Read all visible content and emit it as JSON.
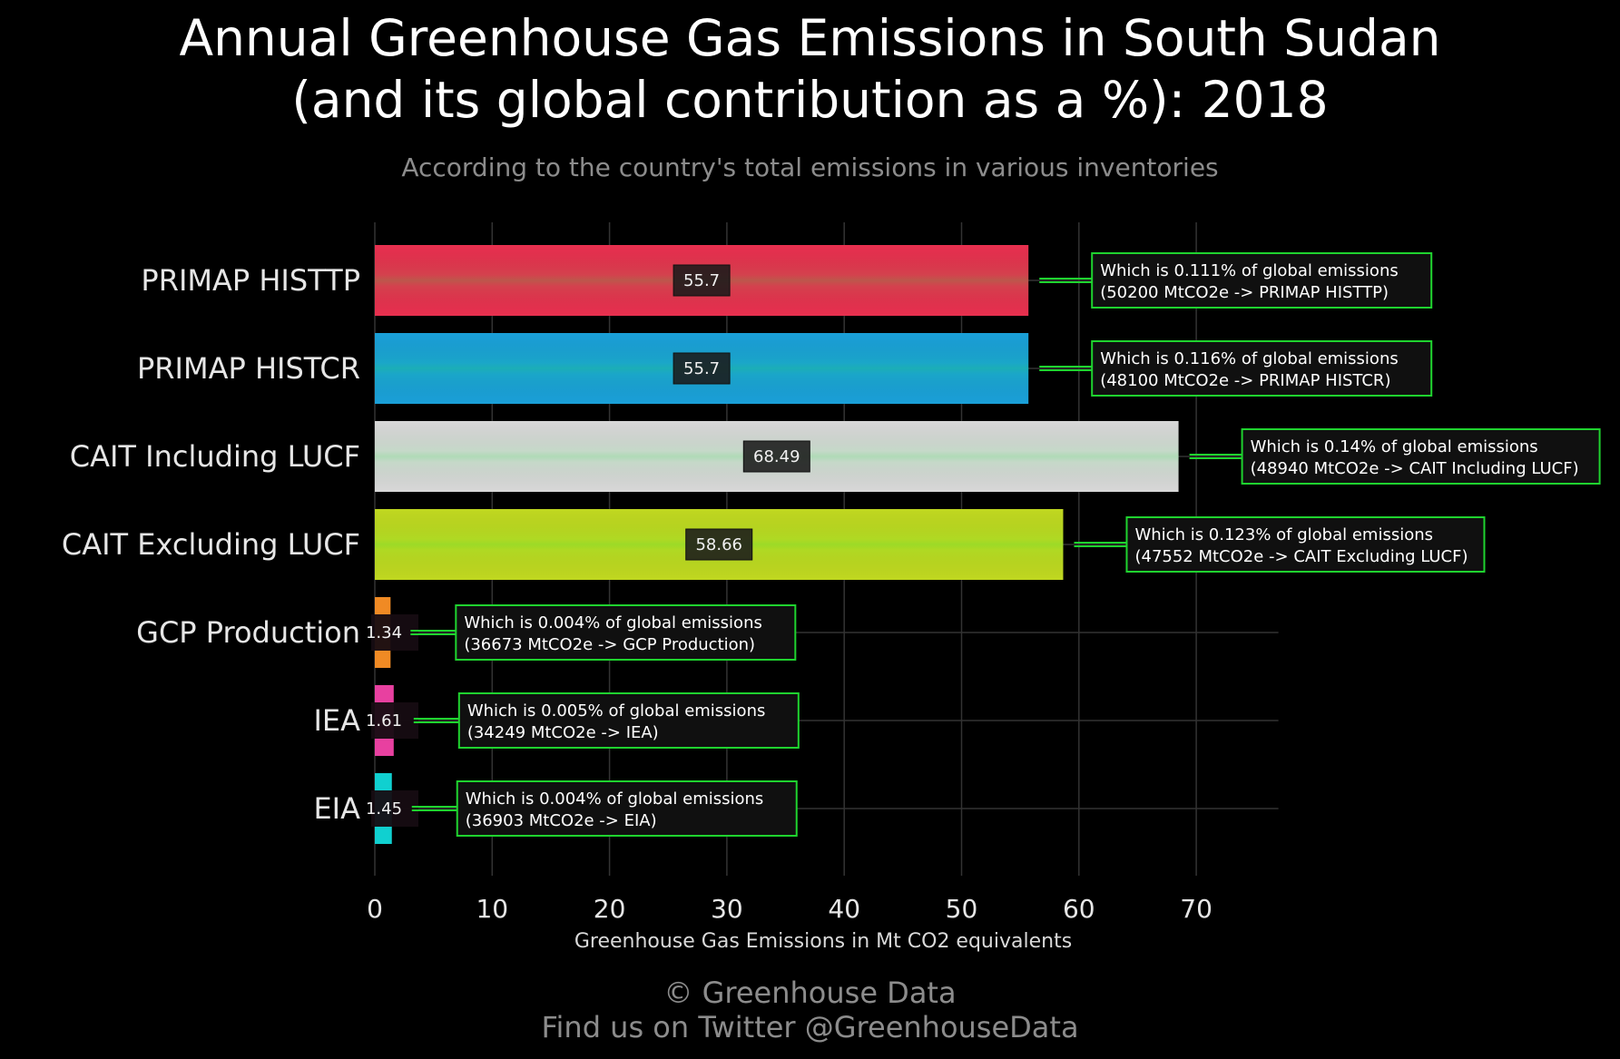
{
  "title_line1": "Annual Greenhouse Gas Emissions in South Sudan",
  "title_line2": "(and its global contribution as a %): 2018",
  "subtitle": "According to the country's total emissions in various inventories",
  "credit_line1": "© Greenhouse Data",
  "credit_line2": "Find us on Twitter @GreenhouseData",
  "chart_data": {
    "type": "bar",
    "orientation": "horizontal",
    "xlabel": "Greenhouse Gas Emissions in Mt CO2 equivalents",
    "xlim": [
      0,
      77
    ],
    "xticks": [
      0,
      10,
      20,
      30,
      40,
      50,
      60,
      70
    ],
    "grid": true,
    "categories": [
      "PRIMAP HISTTP",
      "PRIMAP HISTCR",
      "CAIT Including LUCF",
      "CAIT Excluding LUCF",
      "GCP Production",
      "IEA",
      "EIA"
    ],
    "values": [
      55.7,
      55.7,
      68.49,
      58.66,
      1.34,
      1.61,
      1.45
    ],
    "value_labels": [
      "55.7",
      "55.7",
      "68.49",
      "58.66",
      "1.34",
      "1.61",
      "1.45"
    ],
    "colors": [
      "#e8304f",
      "#1aa0d8",
      "#d8d8d8",
      "#c0d820",
      "#f08a24",
      "#e840a0",
      "#10d0d0"
    ],
    "annotations": [
      [
        "Which is 0.111% of global emissions",
        "(50200 MtCO2e -> PRIMAP HISTTP)"
      ],
      [
        "Which is 0.116% of global emissions",
        "(48100 MtCO2e -> PRIMAP HISTCR)"
      ],
      [
        "Which is 0.14% of global emissions",
        "(48940 MtCO2e -> CAIT Including LUCF)"
      ],
      [
        "Which is 0.123% of global emissions",
        "(47552 MtCO2e -> CAIT Excluding LUCF)"
      ],
      [
        "Which is 0.004% of global emissions",
        "(36673 MtCO2e -> GCP Production)"
      ],
      [
        "Which is 0.005% of global emissions",
        "(34249 MtCO2e -> IEA)"
      ],
      [
        "Which is 0.004% of global emissions",
        "(36903 MtCO2e -> EIA)"
      ]
    ]
  }
}
